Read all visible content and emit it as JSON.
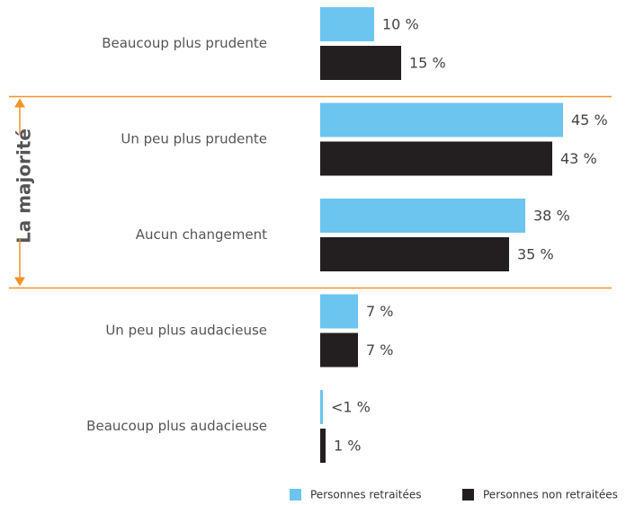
{
  "chart_data": {
    "type": "bar",
    "orientation": "horizontal",
    "categories": [
      "Beaucoup plus prudente",
      "Un peu plus prudente",
      "Aucun changement",
      "Un peu plus audacieuse",
      "Beaucoup plus audacieuse"
    ],
    "series": [
      {
        "name": "Personnes retraitées",
        "color": "#6cc5ee",
        "values": [
          10,
          45,
          38,
          7,
          0.5
        ],
        "value_labels": [
          "10 %",
          "45 %",
          "38 %",
          "7 %",
          "<1 %"
        ]
      },
      {
        "name": "Personnes non retraitées",
        "color": "#231f20",
        "values": [
          15,
          43,
          35,
          7,
          1
        ],
        "value_labels": [
          "15 %",
          "43 %",
          "35 %",
          "7 %",
          "1 %"
        ]
      }
    ],
    "annotation": "La majorité",
    "annotation_color": "#f39325"
  }
}
